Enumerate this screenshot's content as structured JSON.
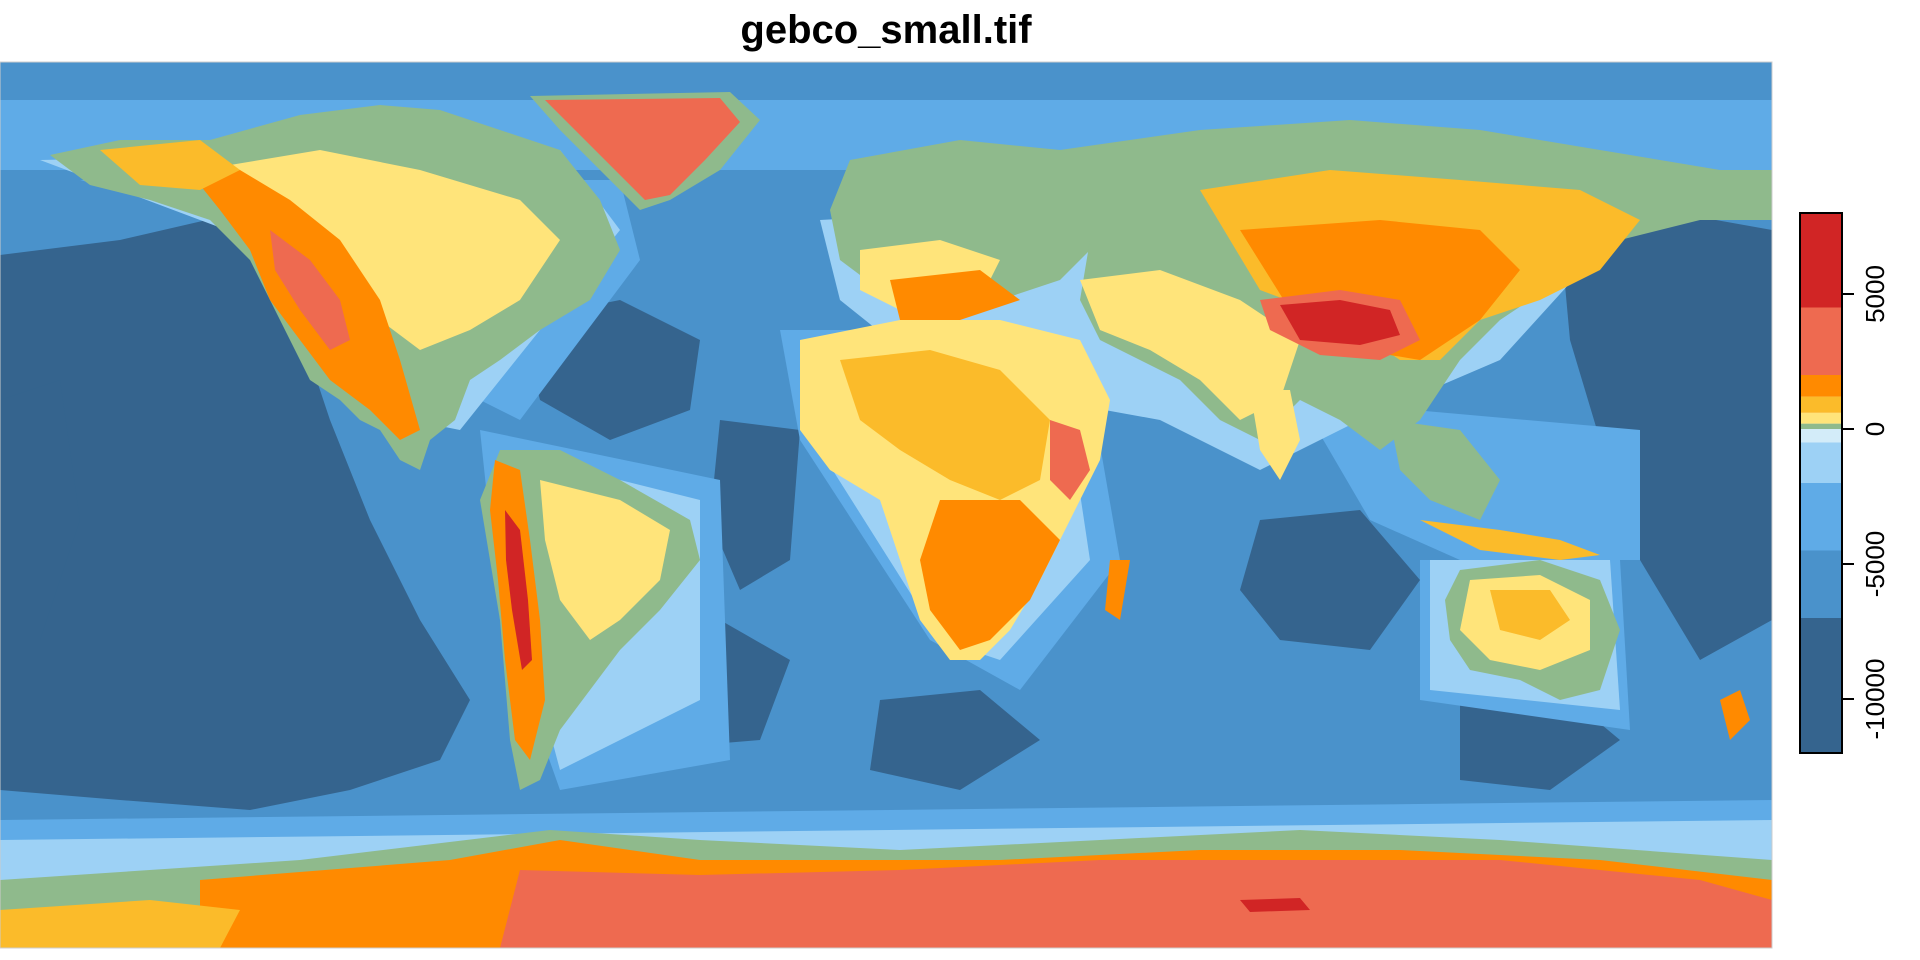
{
  "title": "gebco_small.tif",
  "legend": {
    "tick_labels": [
      "5000",
      "0",
      "-5000",
      "-10000"
    ],
    "tick_values": [
      5000,
      0,
      -5000,
      -10000
    ],
    "range": [
      -12000,
      8000
    ],
    "classes": [
      {
        "min": -12000,
        "max": -7000,
        "color": "#35648e"
      },
      {
        "min": -7000,
        "max": -4500,
        "color": "#4a92cb"
      },
      {
        "min": -4500,
        "max": -2000,
        "color": "#5fabe7"
      },
      {
        "min": -2000,
        "max": -500,
        "color": "#9dd1f5"
      },
      {
        "min": -500,
        "max": 0,
        "color": "#d3ecf9"
      },
      {
        "min": 0,
        "max": 200,
        "color": "#8fba8c"
      },
      {
        "min": 200,
        "max": 600,
        "color": "#ffe47a"
      },
      {
        "min": 600,
        "max": 1200,
        "color": "#fbbb2a"
      },
      {
        "min": 1200,
        "max": 2000,
        "color": "#ff8a00"
      },
      {
        "min": 2000,
        "max": 4500,
        "color": "#ee6a50"
      },
      {
        "min": 4500,
        "max": 8000,
        "color": "#d12525"
      }
    ]
  },
  "colors": {
    "deep_ocean": "#35648e",
    "ocean": "#4a92cb",
    "shelf": "#5fabe7",
    "shallow": "#9dd1f5",
    "coast": "#d3ecf9",
    "lowland": "#8fba8c",
    "plain": "#ffe47a",
    "upland": "#fbbb2a",
    "highland": "#ff8a00",
    "mountain": "#ee6a50",
    "peak": "#d12525"
  }
}
